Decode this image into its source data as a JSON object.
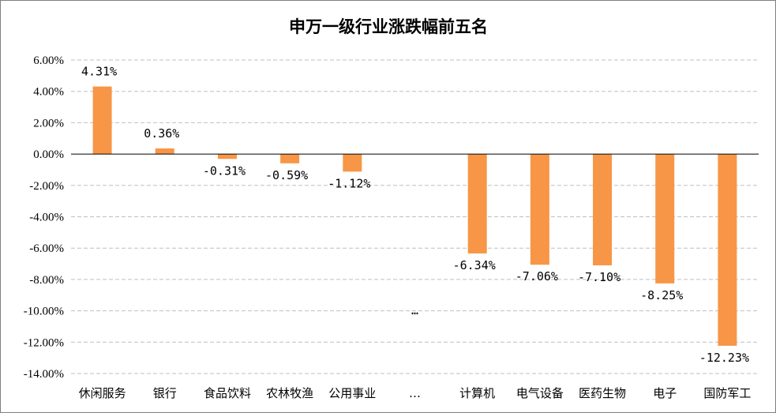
{
  "chart_data": {
    "type": "bar",
    "title": "申万一级行业涨跌幅前五名",
    "xlabel": "",
    "ylabel": "",
    "categories": [
      "休闲服务",
      "银行",
      "食品饮料",
      "农林牧渔",
      "公用事业",
      "…",
      "计算机",
      "电气设备",
      "医药生物",
      "电子",
      "国防军工"
    ],
    "values": [
      4.31,
      0.36,
      -0.31,
      -0.59,
      -1.12,
      null,
      -6.34,
      -7.06,
      -7.1,
      -8.25,
      -12.23
    ],
    "data_labels": [
      "4.31%",
      "0.36%",
      "-0.31%",
      "-0.59%",
      "-1.12%",
      "…",
      "-6.34%",
      "-7.06%",
      "-7.10%",
      "-8.25%",
      "-12.23%"
    ],
    "ylim": [
      -14,
      6
    ],
    "yticks": [
      6,
      4,
      2,
      0,
      -2,
      -4,
      -6,
      -8,
      -10,
      -12,
      -14
    ],
    "ytick_labels": [
      "6.00%",
      "4.00%",
      "2.00%",
      "0.00%",
      "-2.00%",
      "-4.00%",
      "-6.00%",
      "-8.00%",
      "-10.00%",
      "-12.00%",
      "-14.00%"
    ],
    "grid": true,
    "legend": "none",
    "bar_color": "#F79646",
    "grid_color": "#BFBFBF"
  }
}
